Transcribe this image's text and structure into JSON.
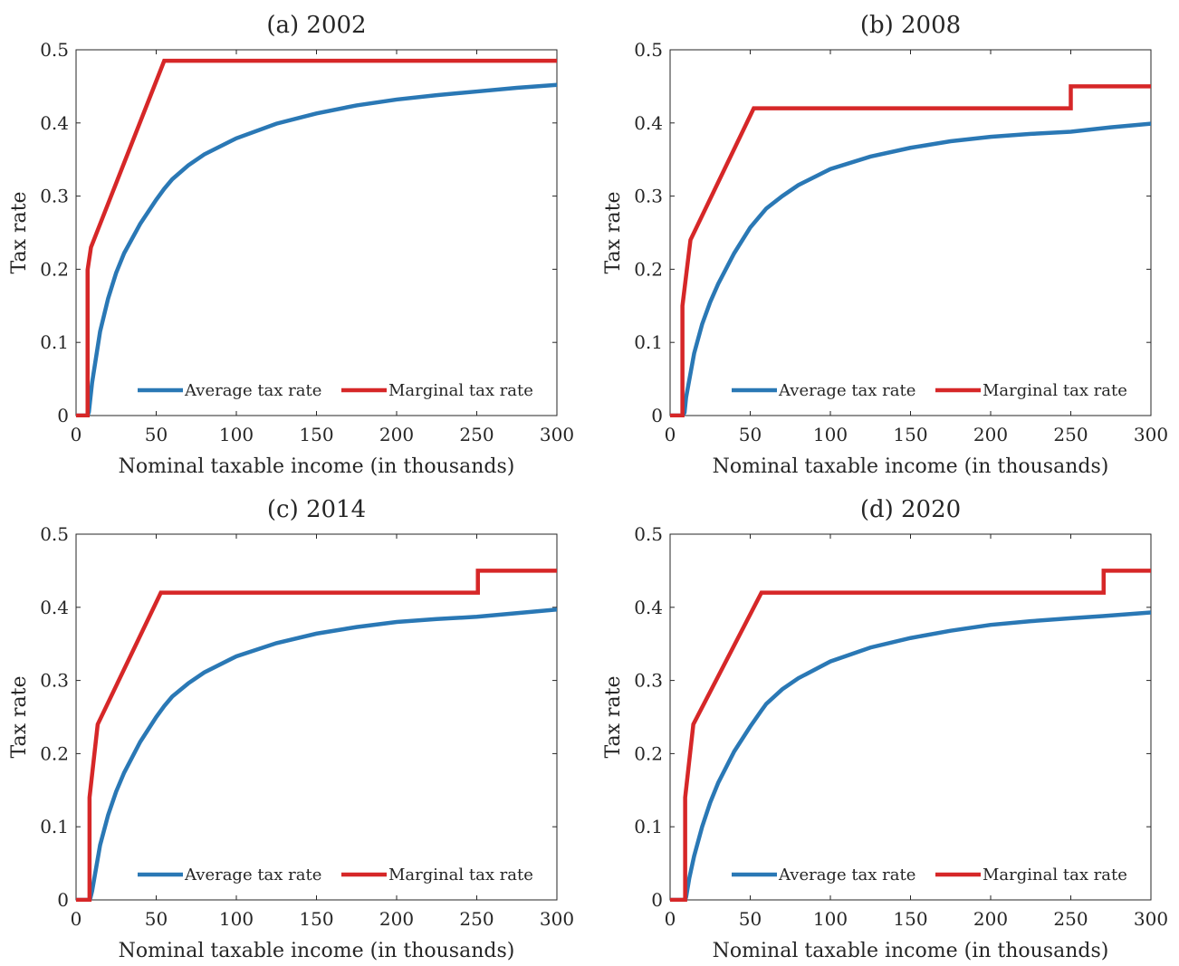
{
  "chart_data": [
    {
      "type": "line",
      "title": "(a) 2002",
      "xlabel": "Nominal taxable income (in thousands)",
      "ylabel": "Tax rate",
      "xlim": [
        0,
        300
      ],
      "ylim": [
        0,
        0.5
      ],
      "xticks": [
        "0",
        "50",
        "100",
        "150",
        "200",
        "250",
        "300"
      ],
      "yticks": [
        "0",
        "0.1",
        "0.2",
        "0.3",
        "0.4",
        "0.5"
      ],
      "legend_position": "bottom-right",
      "series": [
        {
          "name": "Average tax rate",
          "color": "#2a78b5",
          "points": [
            [
              0,
              0
            ],
            [
              7.2,
              0
            ],
            [
              8,
              0.005
            ],
            [
              10,
              0.045
            ],
            [
              15,
              0.115
            ],
            [
              20,
              0.16
            ],
            [
              25,
              0.195
            ],
            [
              30,
              0.222
            ],
            [
              40,
              0.262
            ],
            [
              50,
              0.295
            ],
            [
              55,
              0.31
            ],
            [
              60,
              0.323
            ],
            [
              70,
              0.342
            ],
            [
              80,
              0.357
            ],
            [
              100,
              0.379
            ],
            [
              125,
              0.399
            ],
            [
              150,
              0.413
            ],
            [
              175,
              0.424
            ],
            [
              200,
              0.432
            ],
            [
              225,
              0.438
            ],
            [
              250,
              0.443
            ],
            [
              275,
              0.448
            ],
            [
              300,
              0.452
            ]
          ]
        },
        {
          "name": "Marginal tax rate",
          "color": "#d62728",
          "points": [
            [
              0,
              0
            ],
            [
              7.2,
              0
            ],
            [
              7.2,
              0.199
            ],
            [
              9.3,
              0.23
            ],
            [
              55,
              0.485
            ],
            [
              300,
              0.485
            ]
          ]
        }
      ]
    },
    {
      "type": "line",
      "title": "(b) 2008",
      "xlabel": "Nominal taxable income (in thousands)",
      "ylabel": "Tax rate",
      "xlim": [
        0,
        300
      ],
      "ylim": [
        0,
        0.5
      ],
      "xticks": [
        "0",
        "50",
        "100",
        "150",
        "200",
        "250",
        "300"
      ],
      "yticks": [
        "0",
        "0.1",
        "0.2",
        "0.3",
        "0.4",
        "0.5"
      ],
      "legend_position": "bottom-right",
      "series": [
        {
          "name": "Average tax rate",
          "color": "#2a78b5",
          "points": [
            [
              0,
              0
            ],
            [
              7.7,
              0
            ],
            [
              9,
              0.004
            ],
            [
              10,
              0.025
            ],
            [
              15,
              0.085
            ],
            [
              20,
              0.125
            ],
            [
              25,
              0.155
            ],
            [
              30,
              0.18
            ],
            [
              40,
              0.222
            ],
            [
              50,
              0.257
            ],
            [
              55,
              0.27
            ],
            [
              60,
              0.283
            ],
            [
              70,
              0.3
            ],
            [
              80,
              0.315
            ],
            [
              100,
              0.337
            ],
            [
              125,
              0.354
            ],
            [
              150,
              0.366
            ],
            [
              175,
              0.375
            ],
            [
              200,
              0.381
            ],
            [
              225,
              0.385
            ],
            [
              250,
              0.388
            ],
            [
              275,
              0.394
            ],
            [
              300,
              0.399
            ]
          ]
        },
        {
          "name": "Marginal tax rate",
          "color": "#d62728",
          "points": [
            [
              0,
              0
            ],
            [
              7.7,
              0
            ],
            [
              7.7,
              0.15
            ],
            [
              12.7,
              0.24
            ],
            [
              52.2,
              0.42
            ],
            [
              250,
              0.42
            ],
            [
              250,
              0.45
            ],
            [
              300,
              0.45
            ]
          ]
        }
      ]
    },
    {
      "type": "line",
      "title": "(c) 2014",
      "xlabel": "Nominal taxable income (in thousands)",
      "ylabel": "Tax rate",
      "xlim": [
        0,
        300
      ],
      "ylim": [
        0,
        0.5
      ],
      "xticks": [
        "0",
        "50",
        "100",
        "150",
        "200",
        "250",
        "300"
      ],
      "yticks": [
        "0",
        "0.1",
        "0.2",
        "0.3",
        "0.4",
        "0.5"
      ],
      "legend_position": "bottom-right",
      "series": [
        {
          "name": "Average tax rate",
          "color": "#2a78b5",
          "points": [
            [
              0,
              0
            ],
            [
              8.4,
              0
            ],
            [
              9,
              0.003
            ],
            [
              10,
              0.012
            ],
            [
              15,
              0.075
            ],
            [
              20,
              0.116
            ],
            [
              25,
              0.148
            ],
            [
              30,
              0.174
            ],
            [
              40,
              0.216
            ],
            [
              50,
              0.25
            ],
            [
              55,
              0.265
            ],
            [
              60,
              0.278
            ],
            [
              70,
              0.296
            ],
            [
              80,
              0.311
            ],
            [
              100,
              0.333
            ],
            [
              125,
              0.351
            ],
            [
              150,
              0.364
            ],
            [
              175,
              0.373
            ],
            [
              200,
              0.38
            ],
            [
              225,
              0.384
            ],
            [
              250,
              0.387
            ],
            [
              275,
              0.392
            ],
            [
              300,
              0.397
            ]
          ]
        },
        {
          "name": "Marginal tax rate",
          "color": "#d62728",
          "points": [
            [
              0,
              0
            ],
            [
              8.4,
              0
            ],
            [
              8.4,
              0.14
            ],
            [
              13.5,
              0.24
            ],
            [
              52.9,
              0.42
            ],
            [
              250.7,
              0.42
            ],
            [
              250.7,
              0.45
            ],
            [
              300,
              0.45
            ]
          ]
        }
      ]
    },
    {
      "type": "line",
      "title": "(d) 2020",
      "xlabel": "Nominal taxable income (in thousands)",
      "ylabel": "Tax rate",
      "xlim": [
        0,
        300
      ],
      "ylim": [
        0,
        0.5
      ],
      "xticks": [
        "0",
        "50",
        "100",
        "150",
        "200",
        "250",
        "300"
      ],
      "yticks": [
        "0",
        "0.1",
        "0.2",
        "0.3",
        "0.4",
        "0.5"
      ],
      "legend_position": "bottom-right",
      "series": [
        {
          "name": "Average tax rate",
          "color": "#2a78b5",
          "points": [
            [
              0,
              0
            ],
            [
              9.4,
              0
            ],
            [
              10,
              0.004
            ],
            [
              12,
              0.03
            ],
            [
              15,
              0.06
            ],
            [
              20,
              0.1
            ],
            [
              25,
              0.133
            ],
            [
              30,
              0.16
            ],
            [
              40,
              0.203
            ],
            [
              50,
              0.237
            ],
            [
              57,
              0.259
            ],
            [
              60,
              0.268
            ],
            [
              70,
              0.288
            ],
            [
              80,
              0.303
            ],
            [
              100,
              0.326
            ],
            [
              125,
              0.345
            ],
            [
              150,
              0.358
            ],
            [
              175,
              0.368
            ],
            [
              200,
              0.376
            ],
            [
              225,
              0.381
            ],
            [
              250,
              0.385
            ],
            [
              270,
              0.388
            ],
            [
              300,
              0.393
            ]
          ]
        },
        {
          "name": "Marginal tax rate",
          "color": "#d62728",
          "points": [
            [
              0,
              0
            ],
            [
              9.4,
              0
            ],
            [
              9.4,
              0.14
            ],
            [
              14.5,
              0.24
            ],
            [
              57,
              0.42
            ],
            [
              270.5,
              0.42
            ],
            [
              270.5,
              0.45
            ],
            [
              300,
              0.45
            ]
          ]
        }
      ]
    }
  ]
}
